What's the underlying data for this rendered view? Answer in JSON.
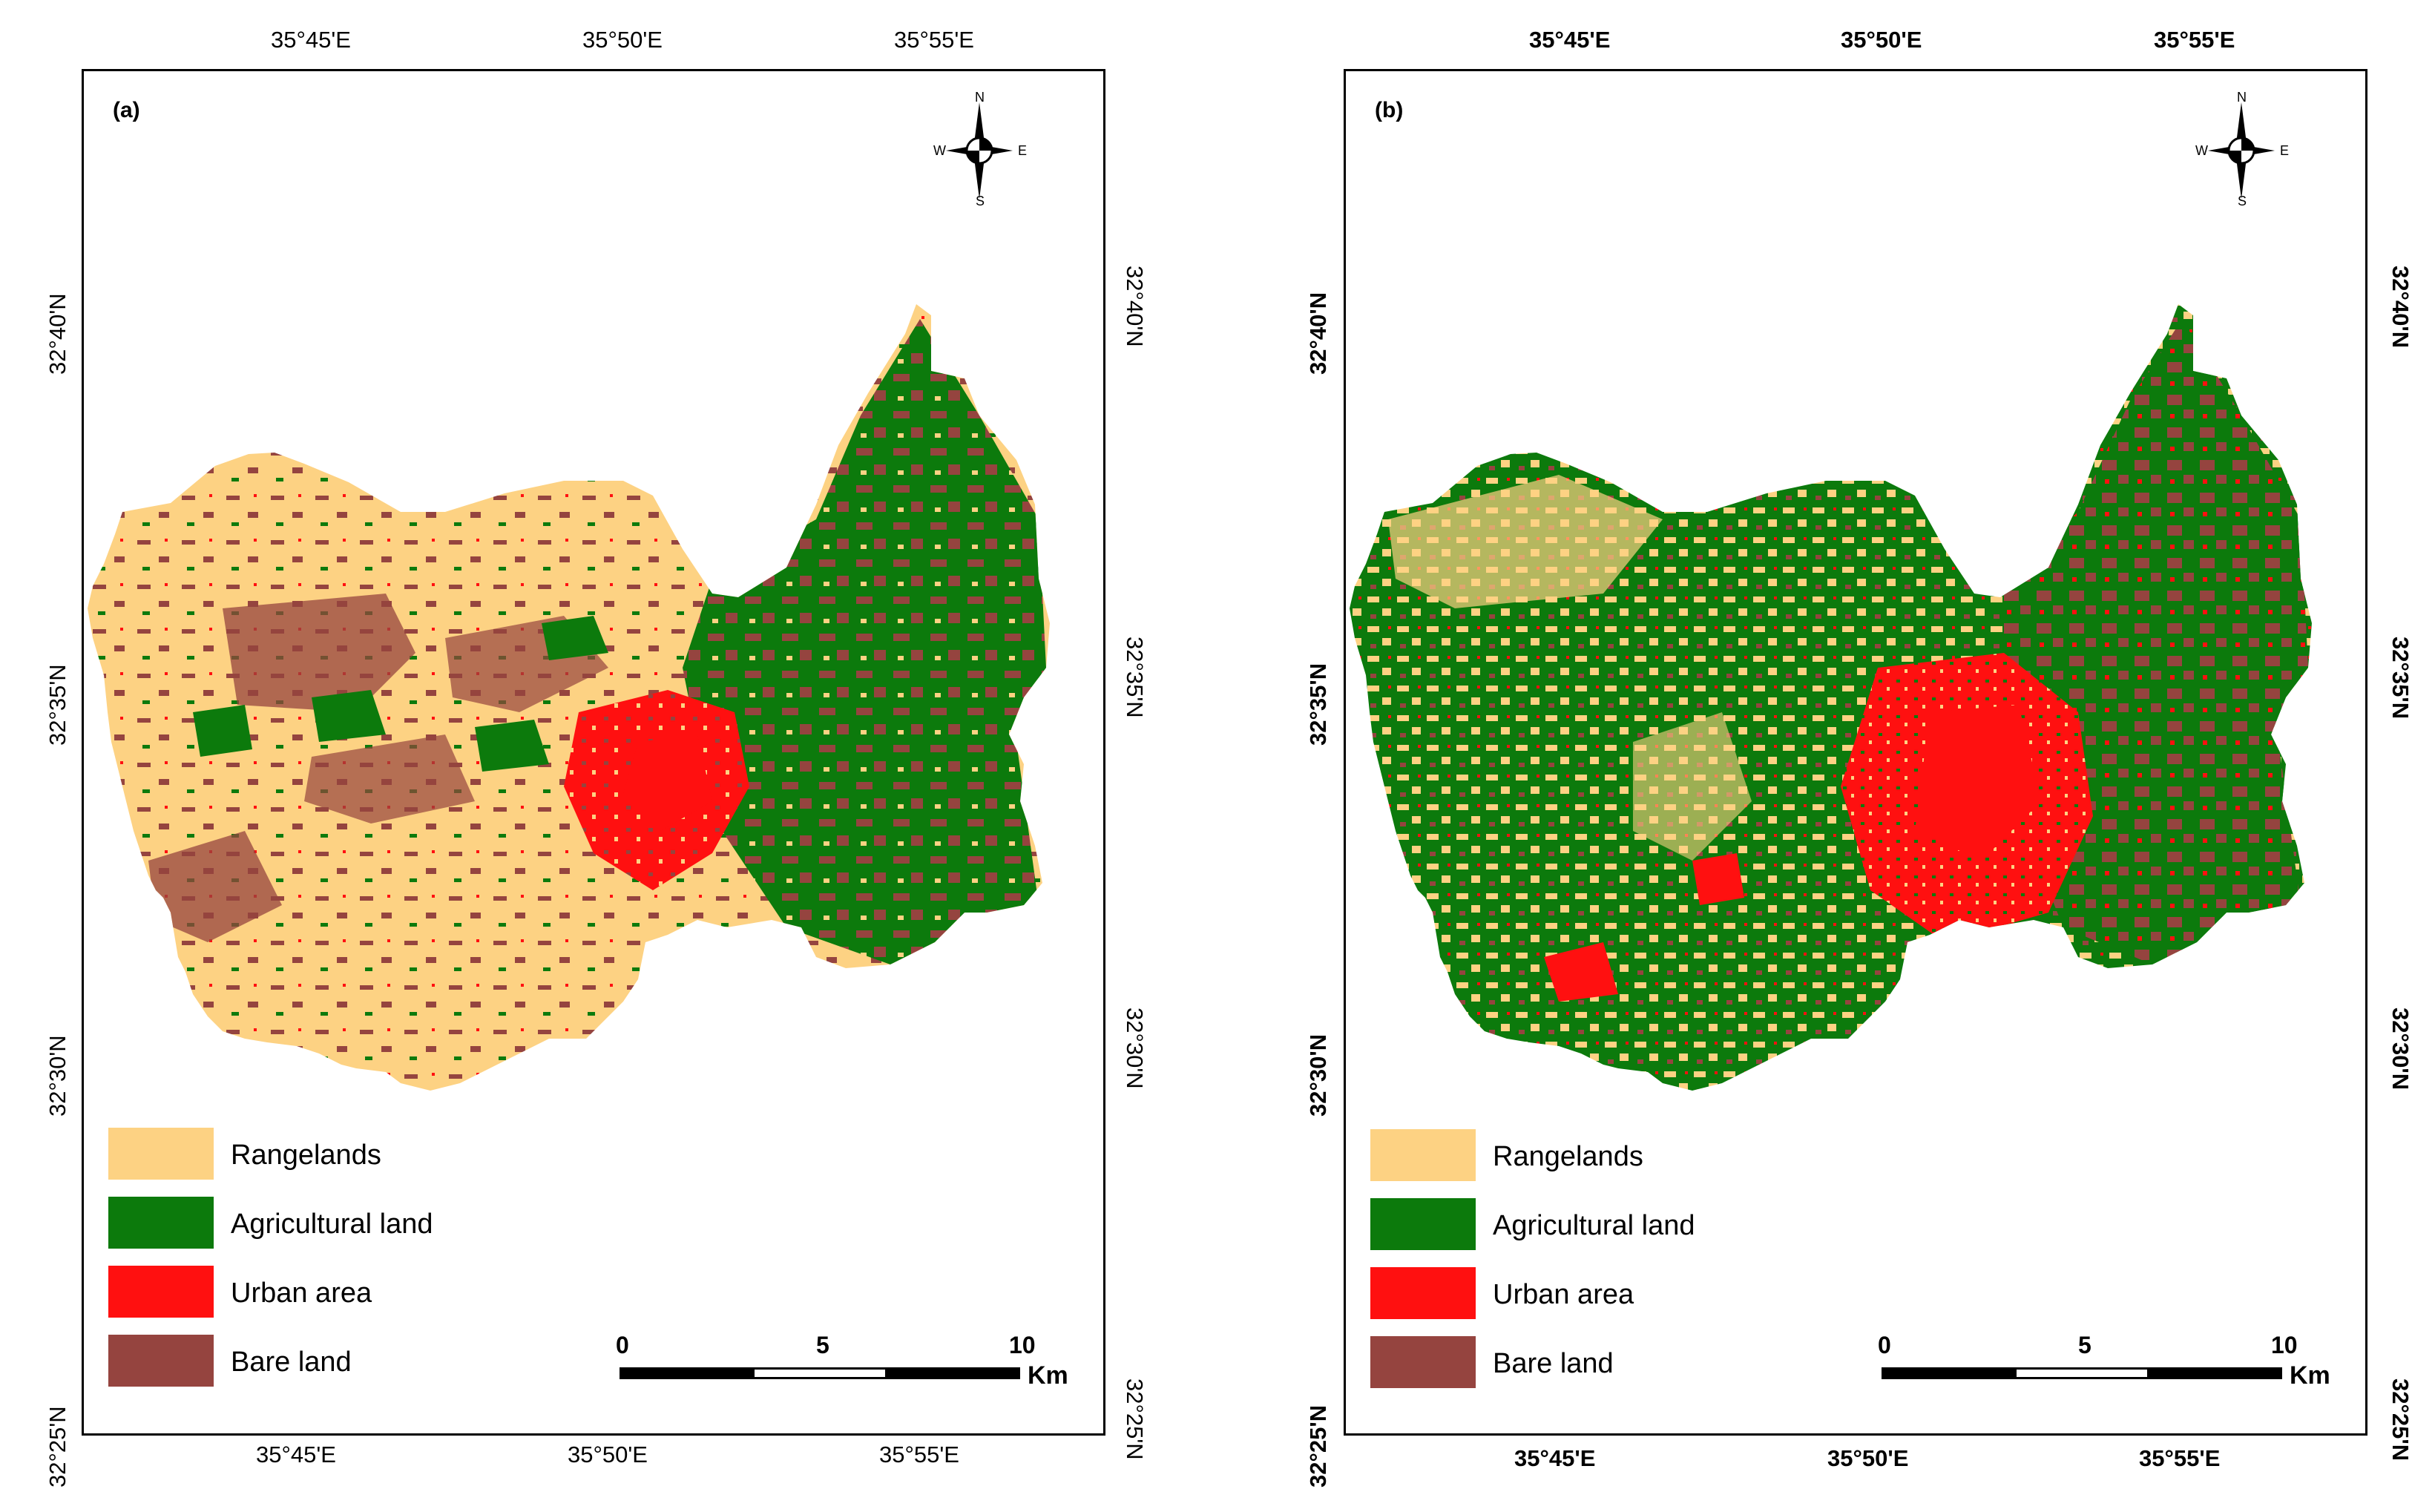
{
  "legend_colors": {
    "rangelands": "#FDD283",
    "agricultural": "#0C7A0C",
    "urban": "#FF1010",
    "bare": "#95443F"
  },
  "panels": [
    {
      "id": "a",
      "label": "(a)",
      "lon_top": [
        "35°45'E",
        "35°50'E",
        "35°55'E"
      ],
      "lon_bottom": [
        "35°45'E",
        "35°50'E",
        "35°55'E"
      ],
      "lat_left": [
        "32°40'N",
        "32°35'N",
        "32°30'N",
        "32°25'N"
      ],
      "lat_right": [
        "32°40'N",
        "32°35'N",
        "32°30'N",
        "32°25'N"
      ],
      "north_arrow": {
        "n": "N",
        "s": "S",
        "e": "E",
        "w": "W"
      },
      "legend": [
        "Rangelands",
        "Agricultural land",
        "Urban area",
        "Bare land"
      ],
      "scale": {
        "ticks": [
          "0",
          "5",
          "10"
        ],
        "unit": "Km"
      }
    },
    {
      "id": "b",
      "label": "(b)",
      "lon_top": [
        "35°45'E",
        "35°50'E",
        "35°55'E"
      ],
      "lon_bottom": [
        "35°45'E",
        "35°50'E",
        "35°55'E"
      ],
      "lat_left": [
        "32°40'N",
        "32°35'N",
        "32°30'N",
        "32°25'N"
      ],
      "lat_right": [
        "32°40'N",
        "32°35'N",
        "32°30'N",
        "32°25'N"
      ],
      "north_arrow": {
        "n": "N",
        "s": "S",
        "e": "E",
        "w": "W"
      },
      "legend": [
        "Rangelands",
        "Agricultural land",
        "Urban area",
        "Bare land"
      ],
      "scale": {
        "ticks": [
          "0",
          "5",
          "10"
        ],
        "unit": "Km"
      }
    }
  ]
}
